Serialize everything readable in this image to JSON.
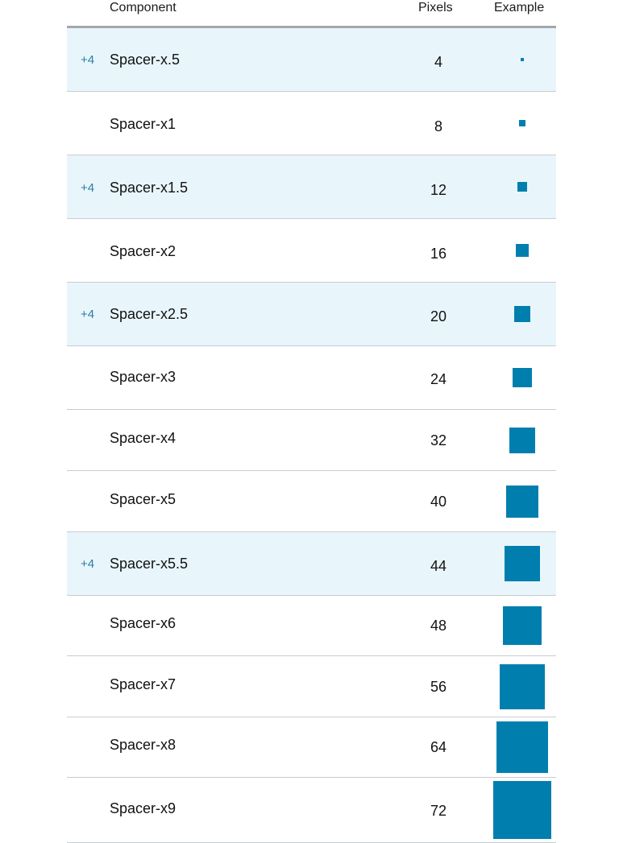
{
  "table": {
    "headers": {
      "component": "Component",
      "pixels": "Pixels",
      "example": "Example"
    },
    "rows": [
      {
        "badge": "+4",
        "name": "Spacer-x.5",
        "pixels": "4",
        "size": 4,
        "highlight": true
      },
      {
        "badge": "",
        "name": "Spacer-x1",
        "pixels": "8",
        "size": 8,
        "highlight": false
      },
      {
        "badge": "+4",
        "name": "Spacer-x1.5",
        "pixels": "12",
        "size": 12,
        "highlight": true
      },
      {
        "badge": "",
        "name": "Spacer-x2",
        "pixels": "16",
        "size": 16,
        "highlight": false
      },
      {
        "badge": "+4",
        "name": "Spacer-x2.5",
        "pixels": "20",
        "size": 20,
        "highlight": true
      },
      {
        "badge": "",
        "name": "Spacer-x3",
        "pixels": "24",
        "size": 24,
        "highlight": false
      },
      {
        "badge": "",
        "name": "Spacer-x4",
        "pixels": "32",
        "size": 32,
        "highlight": false
      },
      {
        "badge": "",
        "name": "Spacer-x5",
        "pixels": "40",
        "size": 40,
        "highlight": false
      },
      {
        "badge": "+4",
        "name": "Spacer-x5.5",
        "pixels": "44",
        "size": 44,
        "highlight": true
      },
      {
        "badge": "",
        "name": "Spacer-x6",
        "pixels": "48",
        "size": 48,
        "highlight": false
      },
      {
        "badge": "",
        "name": "Spacer-x7",
        "pixels": "56",
        "size": 56,
        "highlight": false
      },
      {
        "badge": "",
        "name": "Spacer-x8",
        "pixels": "64",
        "size": 64,
        "highlight": false
      },
      {
        "badge": "",
        "name": "Spacer-x9",
        "pixels": "72",
        "size": 72,
        "highlight": false
      }
    ]
  },
  "colors": {
    "swatch": "#007fae",
    "highlight_bg": "#e8f6fc",
    "badge_text": "#2c7ea4"
  }
}
